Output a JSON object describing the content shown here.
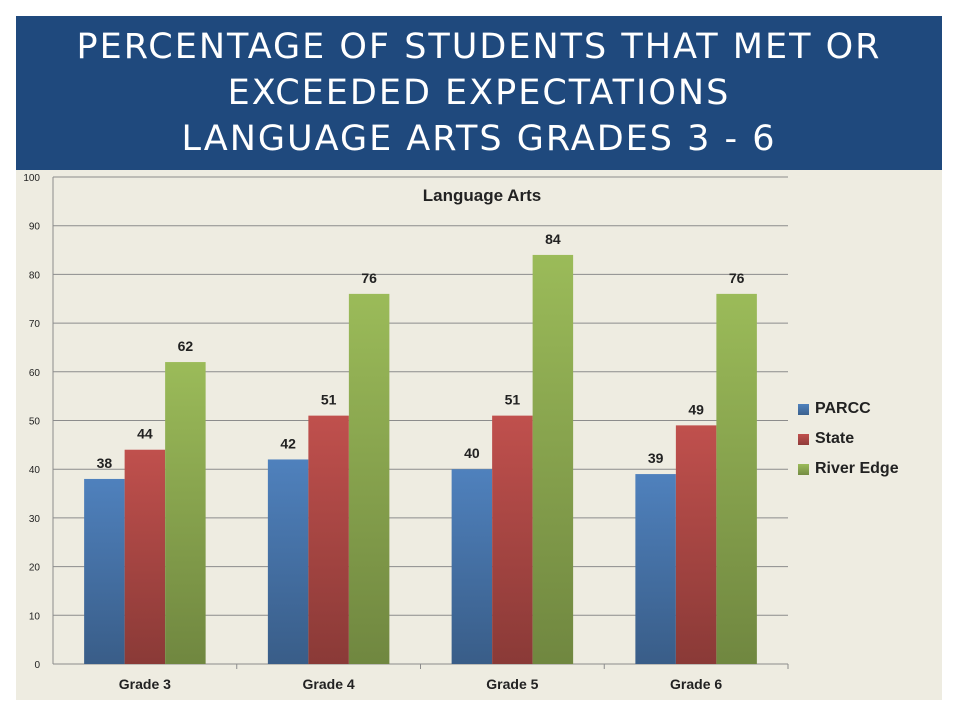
{
  "title": {
    "line1": "PERCENTAGE OF STUDENTS THAT MET OR",
    "line2": "EXCEEDED EXPECTATIONS",
    "line3": "LANGUAGE ARTS GRADES 3 - 6"
  },
  "chart_data": {
    "type": "bar",
    "title": "Language Arts",
    "categories": [
      "Grade 3",
      "Grade 4",
      "Grade 5",
      "Grade 6"
    ],
    "series": [
      {
        "name": "PARCC",
        "values": [
          38,
          42,
          40,
          39
        ],
        "color": "#4f81bd"
      },
      {
        "name": "State",
        "values": [
          44,
          51,
          51,
          49
        ],
        "color": "#c0504d"
      },
      {
        "name": "River Edge",
        "values": [
          62,
          76,
          84,
          76
        ],
        "color": "#9bbb59"
      }
    ],
    "ylim": [
      0,
      100
    ],
    "yticks": [
      0,
      10,
      20,
      30,
      40,
      50,
      60,
      70,
      80,
      90,
      100
    ],
    "grid": true,
    "legend_position": "right"
  }
}
